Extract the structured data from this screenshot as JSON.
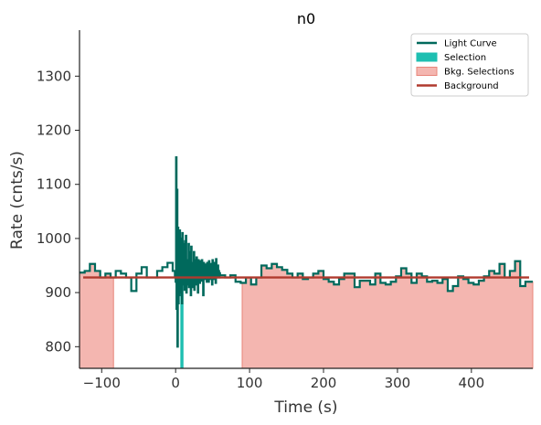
{
  "chart_data": {
    "type": "line",
    "title": "n0",
    "xlabel": "Time (s)",
    "ylabel": "Rate (cnts/s)",
    "xlim": [
      -130,
      483
    ],
    "ylim": [
      760,
      1385
    ],
    "xticks": [
      -100,
      0,
      100,
      200,
      300,
      400
    ],
    "xtick_labels": [
      "−100",
      "0",
      "100",
      "200",
      "300",
      "400"
    ],
    "yticks": [
      800,
      900,
      1000,
      1100,
      1200,
      1300
    ],
    "ytick_labels": [
      "800",
      "900",
      "1000",
      "1100",
      "1200",
      "1300"
    ],
    "grid": false,
    "legend_position": "top-right",
    "legend": [
      {
        "label": "Light Curve",
        "kind": "line",
        "color": "#00695c"
      },
      {
        "label": "Selection",
        "kind": "patch",
        "color": "#1ebfb1"
      },
      {
        "label": "Bkg. Selections",
        "kind": "patch",
        "color": "#f4b6b0"
      },
      {
        "label": "Background",
        "kind": "line",
        "color": "#b03a2e"
      }
    ],
    "colors": {
      "light_curve": "#00695c",
      "selection": "#1ebfb1",
      "bkg_fill": "#f4b6b0",
      "bkg_edge": "#e8857a",
      "background": "#b03a2e"
    },
    "background_level": 928,
    "bkg_selections": [
      [
        -130,
        -84
      ],
      [
        90,
        483
      ]
    ],
    "selection": [
      7,
      10
    ],
    "light_curve_steps": [
      [
        -130,
        937
      ],
      [
        -123,
        940
      ],
      [
        -116,
        953
      ],
      [
        -109,
        940
      ],
      [
        -102,
        928
      ],
      [
        -95,
        935
      ],
      [
        -88,
        928
      ],
      [
        -81,
        940
      ],
      [
        -74,
        935
      ],
      [
        -67,
        928
      ],
      [
        -60,
        903
      ],
      [
        -53,
        935
      ],
      [
        -46,
        947
      ],
      [
        -39,
        928
      ],
      [
        -32,
        928
      ],
      [
        -25,
        940
      ],
      [
        -18,
        947
      ],
      [
        -11,
        955
      ],
      [
        -4,
        940
      ],
      [
        -1,
        930
      ],
      [
        0,
        920
      ],
      [
        0.6,
        1150
      ],
      [
        1.2,
        870
      ],
      [
        1.8,
        1090
      ],
      [
        2.4,
        800
      ],
      [
        3,
        1020
      ],
      [
        3.6,
        880
      ],
      [
        4.2,
        960
      ],
      [
        4.8,
        895
      ],
      [
        5.4,
        1015
      ],
      [
        6,
        900
      ],
      [
        6.6,
        960
      ],
      [
        7.2,
        910
      ],
      [
        7.8,
        1000
      ],
      [
        8.4,
        880
      ],
      [
        9,
        1010
      ],
      [
        9.6,
        915
      ],
      [
        10.2,
        990
      ],
      [
        10.8,
        930
      ],
      [
        11.4,
        970
      ],
      [
        12,
        905
      ],
      [
        12.6,
        995
      ],
      [
        13.2,
        940
      ],
      [
        13.8,
        1005
      ],
      [
        14.4,
        900
      ],
      [
        15,
        960
      ],
      [
        15.6,
        925
      ],
      [
        16.2,
        940
      ],
      [
        16.8,
        915
      ],
      [
        17.4,
        990
      ],
      [
        18,
        910
      ],
      [
        18.6,
        950
      ],
      [
        19.2,
        935
      ],
      [
        19.8,
        975
      ],
      [
        20.4,
        895
      ],
      [
        21,
        985
      ],
      [
        21.6,
        930
      ],
      [
        22.2,
        955
      ],
      [
        22.8,
        910
      ],
      [
        23.4,
        945
      ],
      [
        24,
        925
      ],
      [
        24.6,
        975
      ],
      [
        25.2,
        905
      ],
      [
        25.8,
        960
      ],
      [
        26.4,
        935
      ],
      [
        27,
        950
      ],
      [
        27.6,
        915
      ],
      [
        28.2,
        965
      ],
      [
        28.8,
        925
      ],
      [
        29.4,
        945
      ],
      [
        30,
        900
      ],
      [
        30.6,
        960
      ],
      [
        31.2,
        932
      ],
      [
        31.8,
        952
      ],
      [
        32.4,
        918
      ],
      [
        33,
        958
      ],
      [
        33.6,
        938
      ],
      [
        34.2,
        945
      ],
      [
        34.8,
        922
      ],
      [
        35.4,
        960
      ],
      [
        36,
        930
      ],
      [
        36.6,
        950
      ],
      [
        37.2,
        895
      ],
      [
        37.8,
        955
      ],
      [
        38.4,
        932
      ],
      [
        39,
        948
      ],
      [
        39.6,
        925
      ],
      [
        40.2,
        952
      ],
      [
        40.8,
        935
      ],
      [
        41.4,
        945
      ],
      [
        42,
        920
      ],
      [
        42.6,
        955
      ],
      [
        43.2,
        932
      ],
      [
        43.8,
        950
      ],
      [
        44.4,
        920
      ],
      [
        45,
        958
      ],
      [
        45.6,
        934
      ],
      [
        46.2,
        946
      ],
      [
        46.8,
        925
      ],
      [
        47.4,
        953
      ],
      [
        48,
        935
      ],
      [
        48.6,
        948
      ],
      [
        49.2,
        915
      ],
      [
        49.8,
        960
      ],
      [
        50.4,
        930
      ],
      [
        51,
        950
      ],
      [
        51.6,
        925
      ],
      [
        52.2,
        955
      ],
      [
        52.8,
        934
      ],
      [
        53.4,
        947
      ],
      [
        54,
        918
      ],
      [
        54.6,
        962
      ],
      [
        55.2,
        935
      ],
      [
        55.8,
        945
      ],
      [
        56.4,
        928
      ],
      [
        57,
        950
      ],
      [
        57.6,
        930
      ],
      [
        58.2,
        940
      ],
      [
        58.8,
        928
      ],
      [
        59.4,
        936
      ],
      [
        60,
        932
      ],
      [
        67,
        928
      ],
      [
        74,
        932
      ],
      [
        81,
        920
      ],
      [
        88,
        918
      ],
      [
        95,
        928
      ],
      [
        102,
        915
      ],
      [
        109,
        928
      ],
      [
        116,
        950
      ],
      [
        123,
        945
      ],
      [
        130,
        953
      ],
      [
        137,
        947
      ],
      [
        144,
        942
      ],
      [
        151,
        935
      ],
      [
        158,
        928
      ],
      [
        165,
        935
      ],
      [
        172,
        925
      ],
      [
        179,
        928
      ],
      [
        186,
        935
      ],
      [
        193,
        940
      ],
      [
        200,
        925
      ],
      [
        207,
        920
      ],
      [
        214,
        915
      ],
      [
        221,
        925
      ],
      [
        228,
        935
      ],
      [
        235,
        935
      ],
      [
        242,
        910
      ],
      [
        249,
        922
      ],
      [
        256,
        922
      ],
      [
        263,
        915
      ],
      [
        270,
        935
      ],
      [
        277,
        918
      ],
      [
        284,
        915
      ],
      [
        291,
        920
      ],
      [
        298,
        930
      ],
      [
        305,
        945
      ],
      [
        312,
        935
      ],
      [
        319,
        918
      ],
      [
        326,
        935
      ],
      [
        333,
        930
      ],
      [
        340,
        920
      ],
      [
        347,
        922
      ],
      [
        354,
        918
      ],
      [
        361,
        925
      ],
      [
        368,
        903
      ],
      [
        375,
        912
      ],
      [
        382,
        930
      ],
      [
        389,
        925
      ],
      [
        396,
        918
      ],
      [
        403,
        915
      ],
      [
        410,
        922
      ],
      [
        417,
        930
      ],
      [
        424,
        940
      ],
      [
        431,
        935
      ],
      [
        438,
        953
      ],
      [
        445,
        928
      ],
      [
        452,
        940
      ],
      [
        459,
        958
      ],
      [
        466,
        912
      ],
      [
        473,
        920
      ],
      [
        480,
        920
      ]
    ]
  }
}
